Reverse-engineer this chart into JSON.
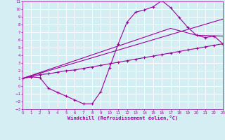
{
  "xlabel": "Windchill (Refroidissement éolien,°C)",
  "bg_color": "#d4eef4",
  "line_color": "#990099",
  "grid_color": "#ffffff",
  "xmin": 0,
  "xmax": 23,
  "ymin": -3,
  "ymax": 11,
  "line1_x": [
    0,
    1,
    2,
    3,
    4,
    5,
    6,
    7,
    8,
    9,
    10,
    11,
    12,
    13,
    14,
    15,
    16,
    17,
    18,
    19,
    20,
    21,
    22,
    23
  ],
  "line1_y": [
    1.0,
    1.2,
    1.1,
    -0.3,
    -0.8,
    -1.3,
    -1.8,
    -2.3,
    -2.3,
    -0.7,
    2.4,
    5.5,
    8.3,
    9.6,
    9.9,
    10.3,
    11.1,
    10.2,
    8.9,
    7.6,
    6.6,
    6.3,
    6.5,
    5.5
  ],
  "line2_x": [
    0,
    1,
    2,
    3,
    4,
    5,
    6,
    7,
    8,
    9,
    10,
    11,
    12,
    13,
    14,
    15,
    16,
    17,
    18,
    19,
    20,
    21,
    22,
    23
  ],
  "line2_y": [
    1.0,
    1.2,
    1.5,
    1.6,
    1.8,
    2.0,
    2.1,
    2.3,
    2.5,
    2.7,
    2.9,
    3.1,
    3.3,
    3.5,
    3.7,
    3.9,
    4.1,
    4.3,
    4.5,
    4.7,
    4.9,
    5.1,
    5.3,
    5.5
  ],
  "line3_x": [
    0,
    23
  ],
  "line3_y": [
    1.0,
    8.7
  ],
  "line4_x": [
    0,
    17,
    20,
    23
  ],
  "line4_y": [
    1.0,
    7.5,
    6.6,
    6.5
  ]
}
